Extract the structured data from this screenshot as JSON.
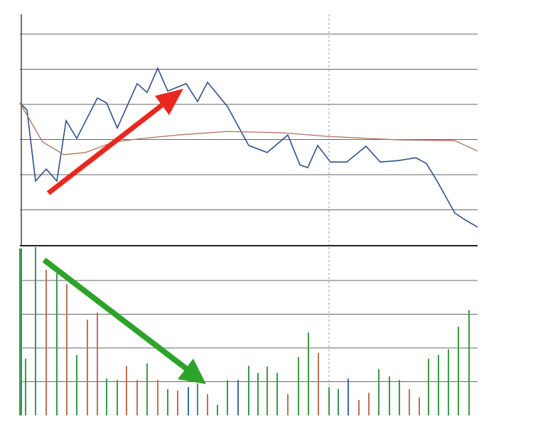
{
  "chart_data": [
    {
      "type": "line",
      "xlim": [
        0,
        644
      ],
      "ylim": [
        0,
        6.5
      ],
      "yticks": [
        1,
        2,
        3,
        4,
        5,
        6
      ],
      "grid": true,
      "crosshair_x": 435,
      "series": [
        {
          "color": "#2f4f8f",
          "x": [
            0,
            10,
            22,
            37,
            52,
            65,
            80,
            109,
            122,
            137,
            165,
            179,
            194,
            208,
            234,
            250,
            264,
            292,
            322,
            348,
            377,
            394,
            405,
            419,
            437,
            460,
            487,
            507,
            532,
            557,
            572,
            587,
            612,
            627,
            644
          ],
          "values": [
            4.04,
            3.84,
            1.82,
            2.16,
            1.82,
            3.54,
            3.03,
            4.18,
            4.04,
            3.33,
            4.59,
            4.34,
            5.03,
            4.38,
            4.59,
            4.08,
            4.63,
            3.94,
            2.83,
            2.63,
            3.13,
            2.28,
            2.2,
            2.83,
            2.36,
            2.36,
            2.81,
            2.36,
            2.4,
            2.48,
            2.32,
            1.82,
            0.91,
            0.71,
            0.51
          ]
        },
        {
          "color": "#b0705a",
          "x": [
            0,
            32,
            62,
            92,
            132,
            172,
            222,
            292,
            372,
            432,
            532,
            612,
            644
          ],
          "values": [
            4.04,
            2.93,
            2.57,
            2.63,
            2.93,
            3.03,
            3.13,
            3.23,
            3.19,
            3.09,
            2.99,
            2.97,
            2.67
          ]
        }
      ]
    },
    {
      "type": "bar",
      "xlim": [
        0,
        644
      ],
      "ylim": [
        0,
        5
      ],
      "yticks": [
        1,
        2,
        3,
        4
      ],
      "grid": true,
      "crosshair_x": 435,
      "x": [
        0,
        8,
        22,
        37,
        52,
        66,
        80,
        95,
        109,
        122,
        137,
        150,
        165,
        179,
        194,
        208,
        222,
        237,
        250,
        264,
        278,
        292,
        307,
        322,
        335,
        348,
        362,
        377,
        392,
        406,
        420,
        435,
        448,
        462,
        477,
        491,
        505,
        520,
        534,
        548,
        562,
        575,
        589,
        603,
        617,
        632
      ],
      "values": [
        4.95,
        1.68,
        4.99,
        4.32,
        4.21,
        3.89,
        1.79,
        2.84,
        3.05,
        1.09,
        1.05,
        1.47,
        1.05,
        1.54,
        1.05,
        0.78,
        0.74,
        0.84,
        0.95,
        0.63,
        0.32,
        1.05,
        1.05,
        1.47,
        1.26,
        1.45,
        1.26,
        0.63,
        1.73,
        2.46,
        1.85,
        0.84,
        0.78,
        1.09,
        0.46,
        0.67,
        1.37,
        1.16,
        1.05,
        0.78,
        0.53,
        1.68,
        1.79,
        1.96,
        2.63,
        3.12
      ],
      "colors": [
        "#3a9a4a",
        "#3a9a4a",
        "#3a9a4a",
        "#c07050",
        "#3a9a4a",
        "#c07050",
        "#3a9a4a",
        "#c07050",
        "#c07050",
        "#3a9a4a",
        "#3a9a4a",
        "#c07050",
        "#c07050",
        "#3a9a4a",
        "#c07050",
        "#3a9a4a",
        "#c07050",
        "#3a6aa8",
        "#3a9a4a",
        "#c07050",
        "#3a9a4a",
        "#3a9a4a",
        "#3a6aa8",
        "#3a9a4a",
        "#3a9a4a",
        "#3a9a4a",
        "#3a9a4a",
        "#c07050",
        "#3a9a4a",
        "#3a9a4a",
        "#c07050",
        "#3a9a4a",
        "#3a9a4a",
        "#3a6aa8",
        "#c07050",
        "#c07050",
        "#3a9a4a",
        "#3a9a4a",
        "#3a9a4a",
        "#c07050",
        "#c07050",
        "#3a9a4a",
        "#3a9a4a",
        "#3a9a4a",
        "#3a9a4a",
        "#3a9a4a"
      ]
    }
  ]
}
